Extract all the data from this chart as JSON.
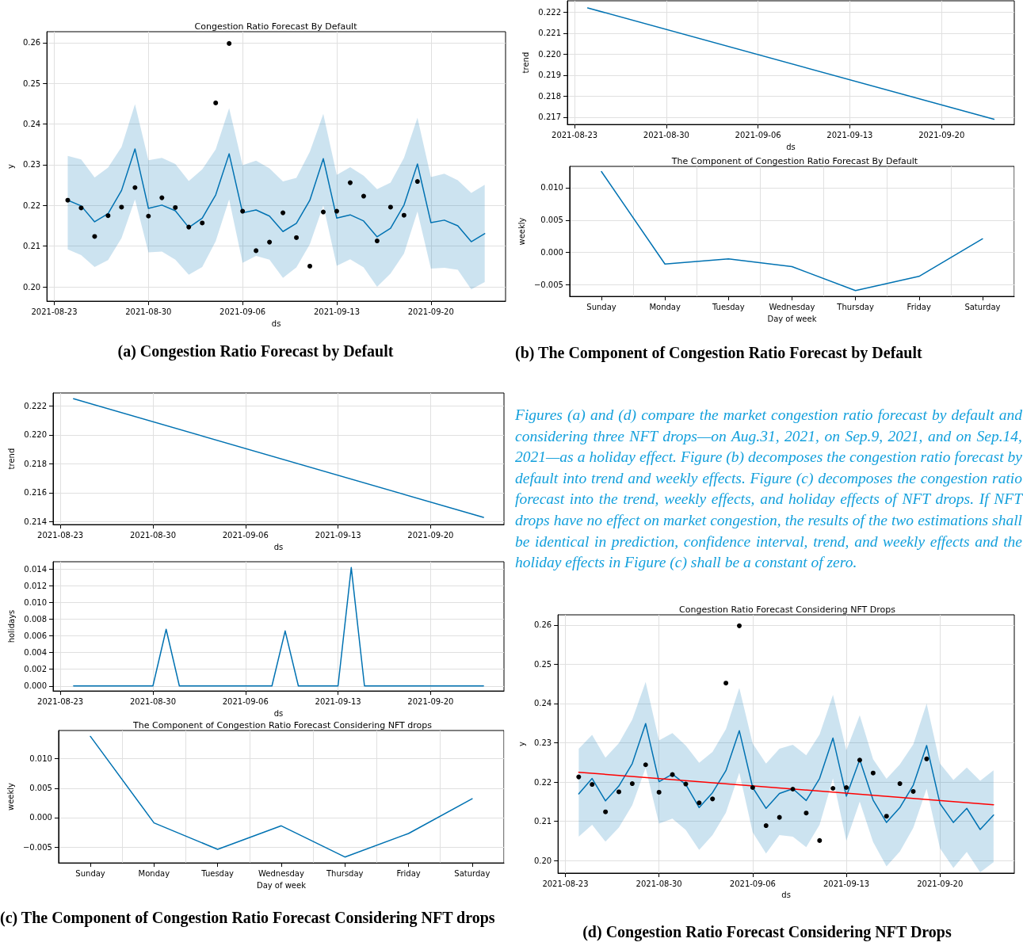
{
  "chart_data": [
    {
      "type": "line",
      "title": "Congestion Ratio Forecast By Default",
      "xlabel": "ds",
      "ylabel": "y",
      "grid": true,
      "marker": "none",
      "x": [
        "2021-08-24",
        "2021-08-25",
        "2021-08-26",
        "2021-08-27",
        "2021-08-28",
        "2021-08-29",
        "2021-08-30",
        "2021-08-31",
        "2021-09-01",
        "2021-09-02",
        "2021-09-03",
        "2021-09-04",
        "2021-09-05",
        "2021-09-06",
        "2021-09-07",
        "2021-09-08",
        "2021-09-09",
        "2021-09-10",
        "2021-09-11",
        "2021-09-12",
        "2021-09-13",
        "2021-09-14",
        "2021-09-15",
        "2021-09-16",
        "2021-09-17",
        "2021-09-18",
        "2021-09-19",
        "2021-09-20",
        "2021-09-21",
        "2021-09-22",
        "2021-09-23",
        "2021-09-24"
      ],
      "xlim": [
        "2021-08-22T10:48",
        "2021-09-25T13:12"
      ],
      "xticks": [
        "2021-08-23",
        "2021-08-30",
        "2021-09-06",
        "2021-09-13",
        "2021-09-20"
      ],
      "ylim": [
        0.1965,
        0.2627
      ],
      "yticks": [
        {
          "value": 0.2,
          "label": "0.20"
        },
        0.21,
        0.22,
        0.23,
        0.24,
        0.25,
        0.26
      ],
      "series": [
        {
          "type": "line",
          "color": "#0072b2",
          "values": [
            0.2213,
            0.2199,
            0.216,
            0.218,
            0.2237,
            0.2339,
            0.2193,
            0.2201,
            0.2187,
            0.2146,
            0.2169,
            0.2226,
            0.2327,
            0.2182,
            0.2189,
            0.2174,
            0.2136,
            0.2156,
            0.2213,
            0.2315,
            0.2169,
            0.2177,
            0.2162,
            0.2123,
            0.2144,
            0.2201,
            0.2302,
            0.2158,
            0.2164,
            0.215,
            0.2111,
            0.2131
          ],
          "upper": [
            0.2322,
            0.2313,
            0.2269,
            0.2293,
            0.2344,
            0.2449,
            0.2311,
            0.2317,
            0.2302,
            0.226,
            0.2289,
            0.2338,
            0.2439,
            0.2299,
            0.231,
            0.2291,
            0.2259,
            0.2268,
            0.2332,
            0.2425,
            0.2275,
            0.2294,
            0.2273,
            0.224,
            0.2256,
            0.2317,
            0.2416,
            0.227,
            0.2278,
            0.2262,
            0.2231,
            0.2251
          ],
          "lower": [
            0.2092,
            0.2078,
            0.2049,
            0.2066,
            0.212,
            0.2215,
            0.2085,
            0.2087,
            0.2067,
            0.203,
            0.2049,
            0.2112,
            0.2215,
            0.2059,
            0.2076,
            0.2067,
            0.2022,
            0.2048,
            0.2105,
            0.22,
            0.2052,
            0.2068,
            0.2048,
            0.2,
            0.2033,
            0.2082,
            0.2185,
            0.2045,
            0.2047,
            0.2042,
            0.1994,
            0.2012
          ]
        },
        {
          "type": "scatter",
          "color": "#000000",
          "marker": "circle",
          "x": [
            "2021-08-24",
            "2021-08-25",
            "2021-08-26",
            "2021-08-27",
            "2021-08-28",
            "2021-08-29",
            "2021-08-30",
            "2021-08-31",
            "2021-09-01",
            "2021-09-02",
            "2021-09-03",
            "2021-09-04",
            "2021-09-05",
            "2021-09-06",
            "2021-09-07",
            "2021-09-08",
            "2021-09-09",
            "2021-09-10",
            "2021-09-11",
            "2021-09-12",
            "2021-09-13",
            "2021-09-14",
            "2021-09-15",
            "2021-09-16",
            "2021-09-17",
            "2021-09-18",
            "2021-09-19"
          ],
          "values": [
            0.2213,
            0.2194,
            0.2124,
            0.2175,
            0.2196,
            0.2244,
            0.2174,
            0.2219,
            0.2195,
            0.2147,
            0.2157,
            0.2452,
            0.2598,
            0.2186,
            0.2089,
            0.211,
            0.2182,
            0.2121,
            0.2051,
            0.2184,
            0.2186,
            0.2256,
            0.2223,
            0.2113,
            0.2196,
            0.2176,
            0.2259
          ]
        }
      ],
      "annotations": [
        "(a) Congestion Ratio Forecast by Default"
      ]
    },
    {
      "type": "line",
      "xlabel": "ds",
      "ylabel": "trend",
      "grid": true,
      "marker": "none",
      "x": [
        "2021-08-24",
        "2021-09-24"
      ],
      "xlim": [
        "2021-08-22T10:48",
        "2021-09-25T13:12"
      ],
      "xticks": [
        "2021-08-23",
        "2021-08-30",
        "2021-09-06",
        "2021-09-13",
        "2021-09-20"
      ],
      "ylim": [
        0.21665,
        0.22254
      ],
      "yticks": [
        0.217,
        0.218,
        0.219,
        {
          "value": 0.22,
          "label": "0.220"
        },
        0.221,
        0.222
      ],
      "series": [
        {
          "type": "line",
          "color": "#0072b2",
          "values": [
            0.2222,
            0.2169
          ]
        }
      ]
    },
    {
      "type": "line",
      "title": "The Component of Congestion Ratio Forecast By Default",
      "xlabel": "Day of week",
      "ylabel": "weekly",
      "grid": true,
      "marker": "none",
      "categories": [
        "Sunday",
        "Monday",
        "Tuesday",
        "Wednesday",
        "Thursday",
        "Friday",
        "Saturday"
      ],
      "ylim": [
        -0.0068,
        0.0133
      ],
      "yticks": [
        {
          "value": -0.005,
          "label": "−0.005"
        },
        {
          "value": 0,
          "label": "0.000"
        },
        0.005,
        {
          "value": 0.01,
          "label": "0.010"
        }
      ],
      "series": [
        {
          "type": "line",
          "color": "#0072b2",
          "values": [
            0.0125,
            -0.0018,
            -0.001,
            -0.0022,
            -0.0059,
            -0.0037,
            0.0021
          ]
        }
      ],
      "annotations": [
        "(b) The Component of Congestion Ratio Forecast by Default"
      ]
    },
    {
      "type": "line",
      "xlabel": "ds",
      "ylabel": "trend",
      "grid": true,
      "marker": "none",
      "x": [
        "2021-08-24",
        "2021-09-24"
      ],
      "xlim": [
        "2021-08-22T10:48",
        "2021-09-25T13:12"
      ],
      "xticks": [
        "2021-08-23",
        "2021-08-30",
        "2021-09-06",
        "2021-09-13",
        "2021-09-20"
      ],
      "ylim": [
        0.2138,
        0.2229
      ],
      "yticks": [
        0.214,
        0.216,
        0.218,
        {
          "value": 0.22,
          "label": "0.220"
        },
        0.222
      ],
      "series": [
        {
          "type": "line",
          "color": "#0072b2",
          "values": [
            0.2225,
            0.2143
          ]
        }
      ]
    },
    {
      "type": "line",
      "xlabel": "ds",
      "ylabel": "holidays",
      "grid": true,
      "marker": "none",
      "x": [
        "2021-08-24",
        "2021-08-25",
        "2021-08-26",
        "2021-08-27",
        "2021-08-28",
        "2021-08-29",
        "2021-08-30",
        "2021-08-31",
        "2021-09-01",
        "2021-09-02",
        "2021-09-03",
        "2021-09-04",
        "2021-09-05",
        "2021-09-06",
        "2021-09-07",
        "2021-09-08",
        "2021-09-09",
        "2021-09-10",
        "2021-09-11",
        "2021-09-12",
        "2021-09-13",
        "2021-09-14",
        "2021-09-15",
        "2021-09-16",
        "2021-09-17",
        "2021-09-18",
        "2021-09-19",
        "2021-09-20",
        "2021-09-21",
        "2021-09-22",
        "2021-09-23",
        "2021-09-24"
      ],
      "xlim": [
        "2021-08-22T10:48",
        "2021-09-25T13:12"
      ],
      "xticks": [
        "2021-08-23",
        "2021-08-30",
        "2021-09-06",
        "2021-09-13",
        "2021-09-20"
      ],
      "ylim": [
        -0.0006,
        0.0149
      ],
      "yticks": [
        {
          "value": 0,
          "label": "0.000"
        },
        {
          "value": 0.002,
          "label": "0.002"
        },
        {
          "value": 0.004,
          "label": "0.004"
        },
        {
          "value": 0.006,
          "label": "0.006"
        },
        {
          "value": 0.008,
          "label": "0.008"
        },
        {
          "value": 0.01,
          "label": "0.010"
        },
        {
          "value": 0.012,
          "label": "0.012"
        },
        {
          "value": 0.014,
          "label": "0.014"
        }
      ],
      "series": [
        {
          "type": "line",
          "color": "#0072b2",
          "values": [
            0,
            0,
            0,
            0,
            0,
            0,
            0,
            0.0068,
            0,
            0,
            0,
            0,
            0,
            0,
            0,
            0,
            0.0066,
            0,
            0,
            0,
            0,
            0.0142,
            0,
            0,
            0,
            0,
            0,
            0,
            0,
            0,
            0,
            0
          ]
        }
      ]
    },
    {
      "type": "line",
      "title": "The Component of Congestion Ratio Forecast Considering NFT drops",
      "xlabel": "Day of week",
      "ylabel": "weekly",
      "grid": true,
      "marker": "none",
      "categories": [
        "Sunday",
        "Monday",
        "Tuesday",
        "Wednesday",
        "Thursday",
        "Friday",
        "Saturday"
      ],
      "ylim": [
        -0.0077,
        0.0148
      ],
      "yticks": [
        {
          "value": -0.005,
          "label": "−0.005"
        },
        {
          "value": 0,
          "label": "0.000"
        },
        0.005,
        {
          "value": 0.01,
          "label": "0.010"
        }
      ],
      "series": [
        {
          "type": "line",
          "color": "#0072b2",
          "values": [
            0.0138,
            -0.0009,
            -0.0054,
            -0.0014,
            -0.0067,
            -0.0027,
            0.0032
          ]
        }
      ],
      "annotations": [
        "(c) The Component of Congestion Ratio Forecast Considering NFT drops"
      ]
    },
    {
      "type": "line",
      "title": "Congestion Ratio Forecast Considering NFT Drops",
      "xlabel": "ds",
      "ylabel": "y",
      "grid": true,
      "marker": "none",
      "x": [
        "2021-08-24",
        "2021-08-25",
        "2021-08-26",
        "2021-08-27",
        "2021-08-28",
        "2021-08-29",
        "2021-08-30",
        "2021-08-31",
        "2021-09-01",
        "2021-09-02",
        "2021-09-03",
        "2021-09-04",
        "2021-09-05",
        "2021-09-06",
        "2021-09-07",
        "2021-09-08",
        "2021-09-09",
        "2021-09-10",
        "2021-09-11",
        "2021-09-12",
        "2021-09-13",
        "2021-09-14",
        "2021-09-15",
        "2021-09-16",
        "2021-09-17",
        "2021-09-18",
        "2021-09-19",
        "2021-09-20",
        "2021-09-21",
        "2021-09-22",
        "2021-09-23",
        "2021-09-24"
      ],
      "xlim": [
        "2021-08-22T10:48",
        "2021-09-25T13:12"
      ],
      "xticks": [
        "2021-08-23",
        "2021-08-30",
        "2021-09-06",
        "2021-09-13",
        "2021-09-20"
      ],
      "ylim": [
        0.1968,
        0.2626
      ],
      "yticks": [
        {
          "value": 0.2,
          "label": "0.20"
        },
        0.21,
        0.22,
        0.23,
        0.24,
        0.25,
        0.26
      ],
      "series": [
        {
          "type": "line",
          "color": "#0072b2",
          "values": [
            0.217,
            0.2209,
            0.2152,
            0.219,
            0.2247,
            0.2349,
            0.2201,
            0.222,
            0.2194,
            0.2135,
            0.2173,
            0.2229,
            0.2331,
            0.2186,
            0.2133,
            0.2171,
            0.2183,
            0.2153,
            0.2209,
            0.2312,
            0.2164,
            0.2257,
            0.2154,
            0.2097,
            0.2135,
            0.2192,
            0.2293,
            0.2145,
            0.2097,
            0.2133,
            0.2079,
            0.2116
          ],
          "upper": [
            0.2285,
            0.232,
            0.2262,
            0.2299,
            0.2359,
            0.2455,
            0.2306,
            0.2325,
            0.2293,
            0.2249,
            0.2277,
            0.2335,
            0.244,
            0.2298,
            0.2247,
            0.2285,
            0.2295,
            0.2268,
            0.2321,
            0.2422,
            0.2281,
            0.237,
            0.2258,
            0.2208,
            0.2245,
            0.2296,
            0.24,
            0.2247,
            0.2205,
            0.2237,
            0.2203,
            0.223
          ],
          "lower": [
            0.2061,
            0.2091,
            0.2048,
            0.2084,
            0.2141,
            0.2236,
            0.2094,
            0.2107,
            0.2078,
            0.2027,
            0.2065,
            0.2122,
            0.2224,
            0.2072,
            0.2018,
            0.2065,
            0.2061,
            0.2034,
            0.2091,
            0.2209,
            0.205,
            0.215,
            0.2047,
            0.1985,
            0.2023,
            0.2083,
            0.2183,
            0.2031,
            0.1981,
            0.2022,
            0.197,
            0.1996
          ]
        },
        {
          "type": "scatter",
          "color": "#000000",
          "marker": "circle",
          "x": [
            "2021-08-24",
            "2021-08-25",
            "2021-08-26",
            "2021-08-27",
            "2021-08-28",
            "2021-08-29",
            "2021-08-30",
            "2021-08-31",
            "2021-09-01",
            "2021-09-02",
            "2021-09-03",
            "2021-09-04",
            "2021-09-05",
            "2021-09-06",
            "2021-09-07",
            "2021-09-08",
            "2021-09-09",
            "2021-09-10",
            "2021-09-11",
            "2021-09-12",
            "2021-09-13",
            "2021-09-14",
            "2021-09-15",
            "2021-09-16",
            "2021-09-17",
            "2021-09-18",
            "2021-09-19"
          ],
          "values": [
            0.2213,
            0.2194,
            0.2124,
            0.2175,
            0.2196,
            0.2244,
            0.2174,
            0.2219,
            0.2195,
            0.2147,
            0.2157,
            0.2452,
            0.2598,
            0.2186,
            0.2089,
            0.211,
            0.2182,
            0.2121,
            0.2051,
            0.2184,
            0.2186,
            0.2256,
            0.2223,
            0.2113,
            0.2196,
            0.2176,
            0.2259
          ]
        },
        {
          "type": "line",
          "color": "#ff0000",
          "x": [
            "2021-08-24",
            "2021-09-24"
          ],
          "values": [
            0.2225,
            0.2142
          ]
        }
      ],
      "annotations": [
        "Figures (a) and (d) compare the market congestion ratio forecast by default and considering three NFT drops—on Aug.31, 2021, on Sep.9, 2021, and on Sep.14, 2021—as a holiday effect. Figure (b) decomposes the congestion ratio forecast by default into trend and weekly effects. Figure (c) decomposes the congestion ratio forecast into the trend, weekly effects, and holiday effects of NFT drops. If NFT drops have no effect on market congestion, the results of the two estimations shall be identical in prediction, confidence interval, trend, and weekly effects and the holiday effects in Figure (c) shall be a constant of zero.",
        "(d) Congestion Ratio Forecast Considering NFT Drops"
      ]
    }
  ]
}
